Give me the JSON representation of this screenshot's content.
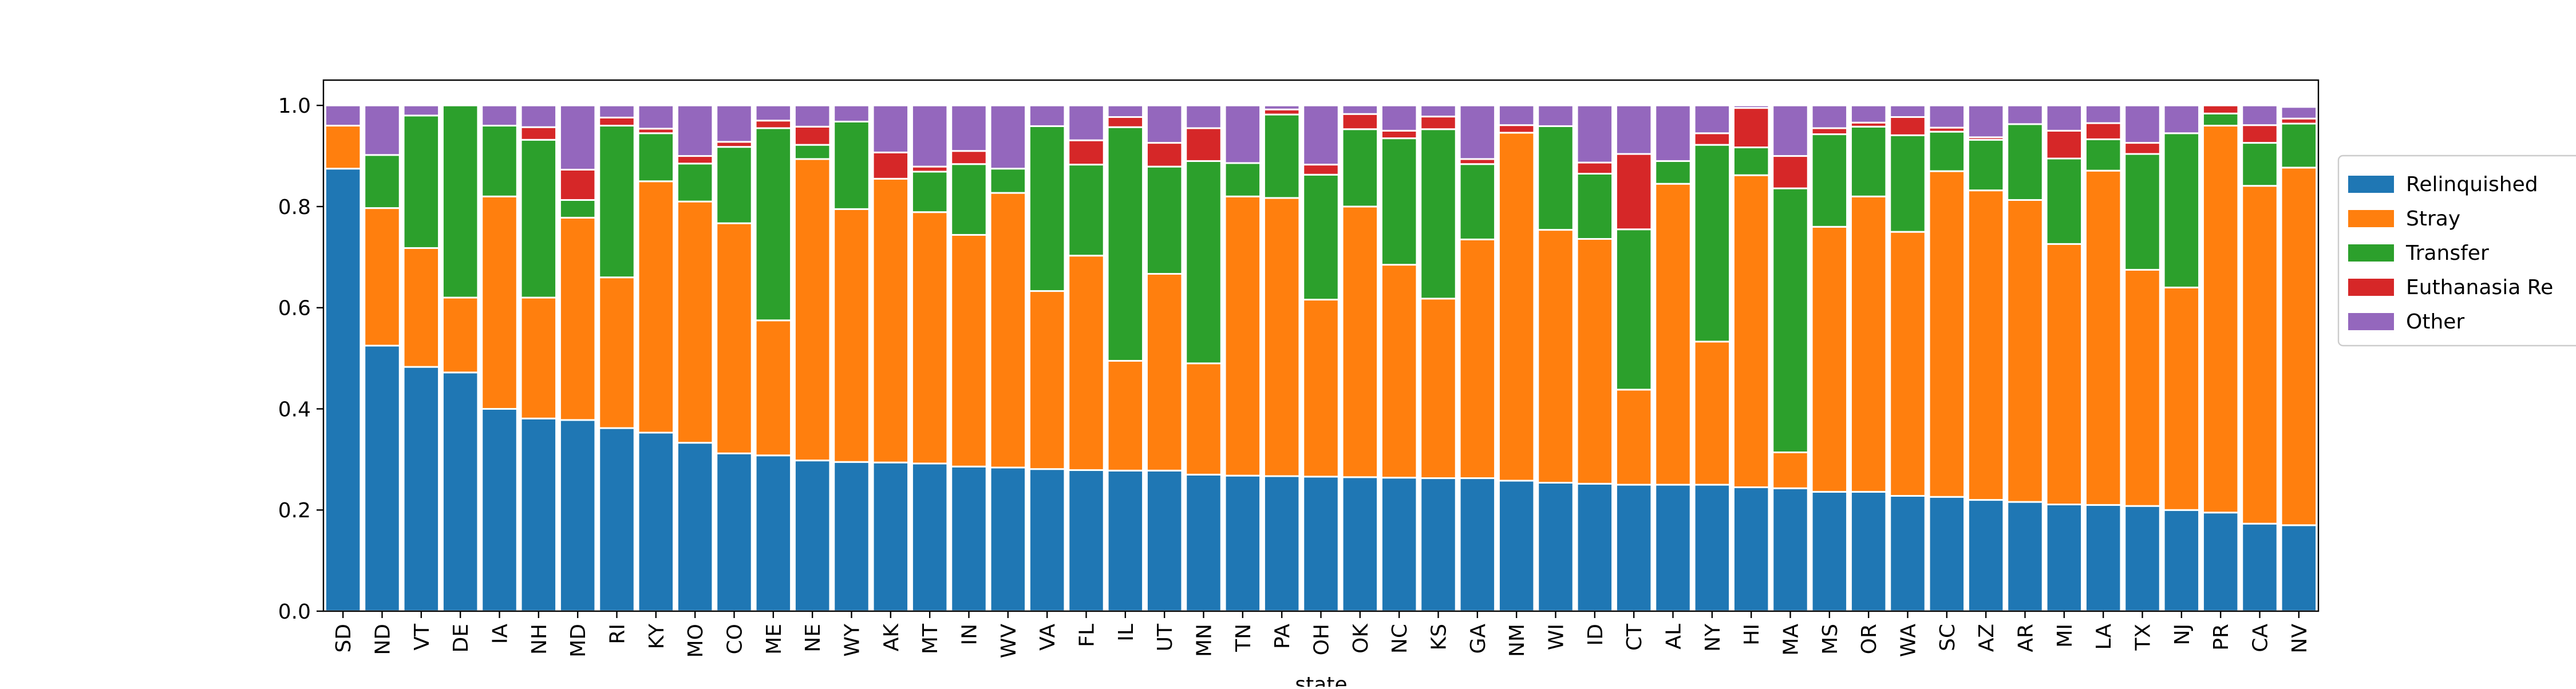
{
  "chart_data": {
    "type": "bar",
    "stacked": true,
    "title": "",
    "xlabel": "state",
    "ylabel": "",
    "ylim": [
      0,
      1.05
    ],
    "yticks": [
      0.0,
      0.2,
      0.4,
      0.6,
      0.8,
      1.0
    ],
    "ytick_labels": [
      "0.0",
      "0.2",
      "0.4",
      "0.6",
      "0.8",
      "1.0"
    ],
    "grid": false,
    "legend_position": "right, outside plot",
    "categories": [
      "SD",
      "ND",
      "VT",
      "DE",
      "IA",
      "NH",
      "MD",
      "RI",
      "KY",
      "MO",
      "CO",
      "ME",
      "NE",
      "WY",
      "AK",
      "MT",
      "IN",
      "WV",
      "VA",
      "FL",
      "IL",
      "UT",
      "MN",
      "TN",
      "PA",
      "OH",
      "OK",
      "NC",
      "KS",
      "GA",
      "NM",
      "WI",
      "ID",
      "CT",
      "AL",
      "NY",
      "HI",
      "MA",
      "MS",
      "OR",
      "WA",
      "SC",
      "AZ",
      "AR",
      "MI",
      "LA",
      "TX",
      "NJ",
      "PR",
      "CA",
      "NV"
    ],
    "series": [
      {
        "name": "Relinquished",
        "color": "#1f77b4",
        "values": [
          0.875,
          0.525,
          0.483,
          0.472,
          0.4,
          0.381,
          0.378,
          0.362,
          0.353,
          0.333,
          0.312,
          0.308,
          0.298,
          0.295,
          0.294,
          0.292,
          0.286,
          0.284,
          0.281,
          0.279,
          0.278,
          0.278,
          0.27,
          0.268,
          0.267,
          0.266,
          0.265,
          0.264,
          0.263,
          0.263,
          0.258,
          0.254,
          0.252,
          0.25,
          0.25,
          0.25,
          0.245,
          0.243,
          0.236,
          0.236,
          0.228,
          0.226,
          0.22,
          0.216,
          0.211,
          0.21,
          0.208,
          0.2,
          0.195,
          0.173,
          0.17
        ]
      },
      {
        "name": "Stray",
        "color": "#ff7f0e",
        "values": [
          0.085,
          0.272,
          0.235,
          0.148,
          0.42,
          0.239,
          0.4,
          0.298,
          0.497,
          0.477,
          0.455,
          0.267,
          0.596,
          0.5,
          0.561,
          0.497,
          0.458,
          0.543,
          0.352,
          0.424,
          0.217,
          0.389,
          0.22,
          0.552,
          0.55,
          0.35,
          0.535,
          0.421,
          0.355,
          0.472,
          0.688,
          0.5,
          0.484,
          0.188,
          0.595,
          0.283,
          0.617,
          0.071,
          0.524,
          0.584,
          0.522,
          0.644,
          0.612,
          0.597,
          0.515,
          0.661,
          0.467,
          0.44,
          0.765,
          0.668,
          0.707
        ]
      },
      {
        "name": "Transfer",
        "color": "#2ca02c",
        "values": [
          0.0,
          0.105,
          0.262,
          0.38,
          0.14,
          0.312,
          0.035,
          0.3,
          0.095,
          0.075,
          0.151,
          0.38,
          0.028,
          0.173,
          0.0,
          0.08,
          0.14,
          0.048,
          0.326,
          0.18,
          0.462,
          0.212,
          0.4,
          0.066,
          0.165,
          0.247,
          0.153,
          0.25,
          0.335,
          0.149,
          0.0,
          0.205,
          0.129,
          0.317,
          0.045,
          0.389,
          0.055,
          0.522,
          0.183,
          0.138,
          0.191,
          0.078,
          0.1,
          0.15,
          0.169,
          0.062,
          0.229,
          0.305,
          0.024,
          0.085,
          0.087
        ]
      },
      {
        "name": "Euthanasia Re",
        "color": "#d62728",
        "values": [
          0.0,
          0.0,
          0.0,
          0.0,
          0.0,
          0.025,
          0.06,
          0.016,
          0.009,
          0.015,
          0.01,
          0.015,
          0.036,
          0.0,
          0.052,
          0.01,
          0.026,
          0.0,
          0.0,
          0.048,
          0.02,
          0.047,
          0.065,
          0.0,
          0.01,
          0.02,
          0.03,
          0.015,
          0.025,
          0.01,
          0.015,
          0.0,
          0.022,
          0.149,
          0.0,
          0.023,
          0.078,
          0.064,
          0.012,
          0.008,
          0.036,
          0.008,
          0.005,
          0.0,
          0.055,
          0.032,
          0.022,
          0.0,
          0.016,
          0.035,
          0.01
        ]
      },
      {
        "name": "Other",
        "color": "#9467bd",
        "values": [
          0.04,
          0.098,
          0.02,
          0.0,
          0.04,
          0.043,
          0.127,
          0.024,
          0.046,
          0.1,
          0.072,
          0.03,
          0.042,
          0.032,
          0.093,
          0.121,
          0.09,
          0.125,
          0.041,
          0.069,
          0.023,
          0.074,
          0.045,
          0.114,
          0.008,
          0.117,
          0.017,
          0.05,
          0.022,
          0.106,
          0.039,
          0.041,
          0.113,
          0.096,
          0.11,
          0.055,
          0.005,
          0.1,
          0.045,
          0.034,
          0.023,
          0.044,
          0.063,
          0.037,
          0.05,
          0.035,
          0.074,
          0.055,
          0.0,
          0.039,
          0.023
        ]
      }
    ]
  }
}
